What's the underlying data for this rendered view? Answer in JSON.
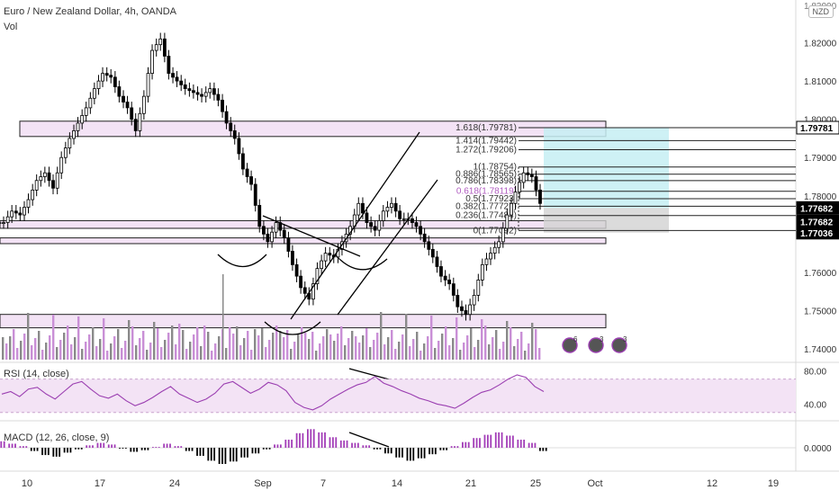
{
  "header": {
    "title": "Euro / New Zealand Dollar, 4h, OANDA",
    "sub": "Vol"
  },
  "currency_badge": "NZD",
  "rsi_label": "RSI (14, close)",
  "macd_label": "MACD (12, 26, close, 9)",
  "price_axis": {
    "ticks": [
      "1.82000",
      "1.81000",
      "1.80000",
      "1.79000",
      "1.78000",
      "1.77000",
      "1.76000",
      "1.75000",
      "1.74000"
    ],
    "top_partial": "1.83000",
    "tags": [
      {
        "text": "1.79781",
        "color": "#000000",
        "bg": "#ffffff",
        "price": 1.79781
      },
      {
        "text": "1.77682",
        "color": "#ffffff",
        "bg": "#000000",
        "price": 1.77682
      },
      {
        "text": "1.77682",
        "color": "#ffffff",
        "bg": "#000000",
        "price": 1.77682
      },
      {
        "text": "1.77036",
        "color": "#ffffff",
        "bg": "#000000",
        "price": 1.77036
      }
    ]
  },
  "rsi_axis": {
    "ticks": [
      "80.00",
      "40.00"
    ]
  },
  "macd_axis": {
    "ticks": [
      "0.0000"
    ]
  },
  "time_axis": {
    "ticks": [
      "10",
      "17",
      "24",
      "Sep",
      "7",
      "14",
      "21",
      "25",
      "Oct",
      "12",
      "19"
    ]
  },
  "fib_labels": [
    "1.618(1.79781)",
    "1.414(1.79442)",
    "1.272(1.79206)",
    "1(1.78754)",
    "0.886(1.78565)",
    "0.786(1.78398)",
    "0.618(1.78119)",
    "0.5(1.77923)",
    "0.382(1.77727)",
    "0.236(1.77484)",
    "0(1.77092)"
  ],
  "event_icons": [
    "6",
    "3",
    "3"
  ],
  "chart_data": {
    "type": "candlestick",
    "title": "Euro / New Zealand Dollar, 4h, OANDA",
    "price_range": [
      1.735,
      1.83
    ],
    "key_levels": {
      "zone_top": [
        1.7955,
        1.7995
      ],
      "zone_mid": [
        1.7715,
        1.7735
      ],
      "zone_low": [
        1.7675,
        1.769
      ],
      "zone_bottom": [
        1.7455,
        1.749
      ]
    },
    "fibonacci": [
      {
        "level": 1.618,
        "price": 1.79781
      },
      {
        "level": 1.414,
        "price": 1.79442
      },
      {
        "level": 1.272,
        "price": 1.79206
      },
      {
        "level": 1,
        "price": 1.78754
      },
      {
        "level": 0.886,
        "price": 1.78565
      },
      {
        "level": 0.786,
        "price": 1.78398
      },
      {
        "level": 0.618,
        "price": 1.78119
      },
      {
        "level": 0.5,
        "price": 1.77923
      },
      {
        "level": 0.382,
        "price": 1.77727
      },
      {
        "level": 0.236,
        "price": 1.77484
      },
      {
        "level": 0,
        "price": 1.77092
      }
    ],
    "position": {
      "target": 1.79781,
      "entry": 1.77682,
      "stop": 1.77036
    },
    "price_path": [
      1.773,
      1.776,
      1.775,
      1.779,
      1.784,
      1.786,
      1.782,
      1.79,
      1.795,
      1.799,
      1.803,
      1.808,
      1.812,
      1.811,
      1.806,
      1.803,
      1.797,
      1.806,
      1.818,
      1.821,
      1.812,
      1.81,
      1.808,
      1.807,
      1.806,
      1.808,
      1.805,
      1.799,
      1.795,
      1.787,
      1.783,
      1.772,
      1.768,
      1.773,
      1.769,
      1.762,
      1.756,
      1.753,
      1.761,
      1.765,
      1.764,
      1.768,
      1.772,
      1.778,
      1.773,
      1.771,
      1.776,
      1.778,
      1.774,
      1.774,
      1.772,
      1.768,
      1.764,
      1.759,
      1.757,
      1.751,
      1.749,
      1.754,
      1.762,
      1.765,
      1.768,
      1.775,
      1.781,
      1.786,
      1.785,
      1.778
    ],
    "rsi_range": [
      20,
      90
    ],
    "rsi_levels": [
      70,
      30
    ],
    "rsi": [
      52,
      55,
      49,
      58,
      60,
      52,
      46,
      55,
      64,
      67,
      58,
      50,
      47,
      52,
      44,
      38,
      42,
      48,
      55,
      61,
      52,
      47,
      42,
      46,
      53,
      64,
      67,
      60,
      53,
      58,
      66,
      63,
      56,
      42,
      36,
      33,
      38,
      46,
      52,
      58,
      63,
      66,
      73,
      65,
      61,
      56,
      52,
      47,
      44,
      40,
      38,
      35,
      41,
      48,
      54,
      57,
      63,
      70,
      75,
      72,
      61,
      55
    ],
    "macd": [
      0.0008,
      0.0005,
      0.0002,
      -0.0004,
      -0.0009,
      -0.0011,
      -0.0006,
      -0.0002,
      0.0003,
      0.0006,
      0.0004,
      -0.0001,
      -0.0005,
      -0.0003,
      0.0001,
      0.0005,
      0.0002,
      -0.0004,
      -0.001,
      -0.0016,
      -0.002,
      -0.0017,
      -0.0012,
      -0.0007,
      -0.0002,
      0.0004,
      0.001,
      0.0018,
      0.0023,
      0.0019,
      0.0013,
      0.0009,
      0.0006,
      0.0003,
      -0.0002,
      -0.0007,
      -0.0012,
      -0.0016,
      -0.0013,
      -0.0008,
      -0.0003,
      0.0002,
      0.0007,
      0.0012,
      0.0016,
      0.0019,
      0.0015,
      0.001,
      0.0006,
      -0.0004
    ]
  }
}
